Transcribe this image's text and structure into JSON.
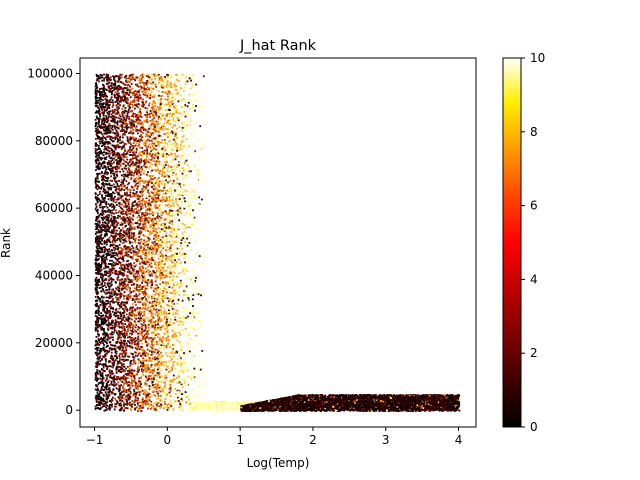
{
  "chart_data": {
    "type": "scatter",
    "title": "J_hat Rank",
    "xlabel": "Log(Temp)",
    "ylabel": "Rank",
    "xlim": [
      -1.2,
      4.24
    ],
    "ylim": [
      -5000,
      104600
    ],
    "x_ticks": [
      -1,
      0,
      1,
      2,
      3,
      4
    ],
    "x_tick_labels": [
      "−1",
      "0",
      "1",
      "2",
      "3",
      "4"
    ],
    "y_ticks": [
      0,
      20000,
      40000,
      60000,
      80000,
      100000
    ],
    "y_tick_labels": [
      "0",
      "20000",
      "40000",
      "60000",
      "80000",
      "100000"
    ],
    "grid": false,
    "colormap": "afmhot",
    "colorbar": {
      "range": [
        0,
        10
      ],
      "ticks": [
        0,
        2,
        4,
        6,
        8,
        10
      ],
      "tick_labels": [
        "0",
        "2",
        "4",
        "6",
        "8",
        "10"
      ]
    },
    "regions": [
      {
        "name": "vertical band",
        "x_range": [
          -1,
          0.5
        ],
        "rank_range": [
          0,
          100000
        ],
        "color_value_trend": "dark (near 0) at x = -1, rising to bright (near 10) toward x = 0.5"
      },
      {
        "name": "horizontal band",
        "x_range": [
          0.3,
          4
        ],
        "rank_range": [
          0,
          5000
        ],
        "color_value_trend": "dark (near 0), denser above x = 1.2"
      }
    ]
  }
}
